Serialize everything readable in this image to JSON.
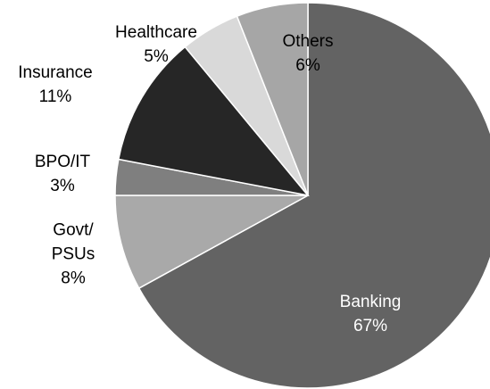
{
  "chart_data": {
    "type": "pie",
    "categories": [
      "Banking",
      "Govt/\nPSUs",
      "BPO/IT",
      "Insurance",
      "Healthcare",
      "Others"
    ],
    "values": [
      67,
      8,
      3,
      11,
      5,
      6
    ],
    "value_labels": [
      "67%",
      "8%",
      "3%",
      "11%",
      "5%",
      "6%"
    ],
    "colors": [
      "#636363",
      "#a9a9a9",
      "#7f7f7f",
      "#262626",
      "#d9d9d9",
      "#a6a6a6"
    ]
  }
}
